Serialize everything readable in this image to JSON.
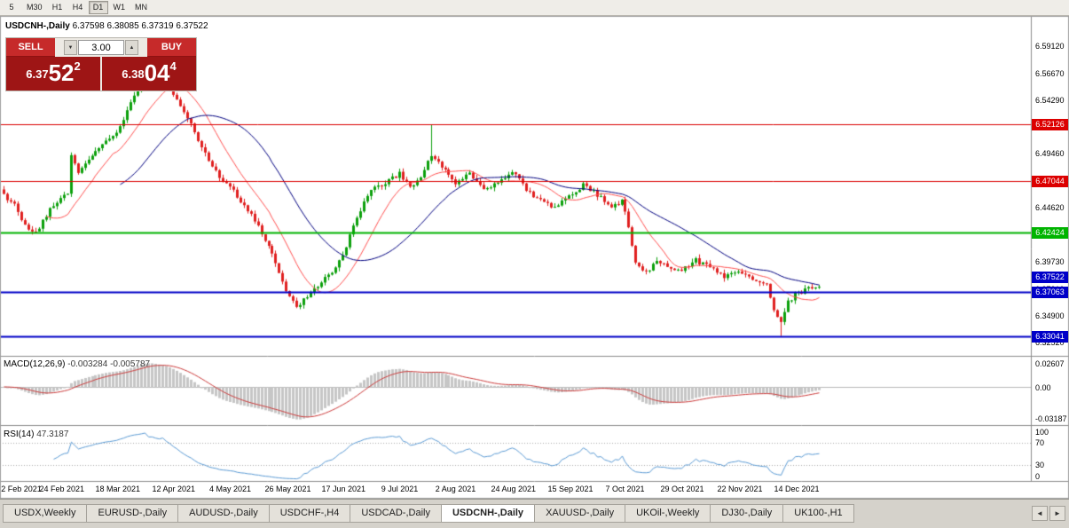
{
  "toolbar": {
    "timeframes": [
      {
        "label": "5",
        "active": false
      },
      {
        "label": "M30",
        "active": false
      },
      {
        "label": "H1",
        "active": false
      },
      {
        "label": "H4",
        "active": false
      },
      {
        "label": "D1",
        "active": true
      },
      {
        "label": "W1",
        "active": false
      },
      {
        "label": "MN",
        "active": false
      }
    ]
  },
  "icons": {
    "spin_down": "▼",
    "spin_up": "▲",
    "tab_scroll_left": "◄",
    "tab_scroll_right": "►"
  },
  "chart": {
    "title": "USDCNH-,Daily",
    "ohlc": "6.37598 6.38085 6.37319 6.37522",
    "trade_panel": {
      "sell_label": "SELL",
      "buy_label": "BUY",
      "volume": "3.00",
      "button_color": "#C62A2A",
      "price_bg": "#9E1515",
      "bid": {
        "head": "6.37",
        "big": "52",
        "sup": "2"
      },
      "ask": {
        "head": "6.38",
        "big": "04",
        "sup": "4"
      }
    }
  },
  "macd": {
    "label": "MACD(12,26,9)",
    "values": "-0.003284 -0.005787"
  },
  "rsi": {
    "label": "RSI(14)",
    "value": "47.3187"
  },
  "tabs": [
    {
      "label": "USDX,Weekly",
      "active": false
    },
    {
      "label": "EURUSD-,Daily",
      "active": false
    },
    {
      "label": "AUDUSD-,Daily",
      "active": false
    },
    {
      "label": "USDCHF-,H4",
      "active": false
    },
    {
      "label": "USDCAD-,Daily",
      "active": false
    },
    {
      "label": "USDCNH-,Daily",
      "active": true
    },
    {
      "label": "XAUUSD-,Daily",
      "active": false
    },
    {
      "label": "UKOil-,Weekly",
      "active": false
    },
    {
      "label": "DJ30-,Daily",
      "active": false
    },
    {
      "label": "UK100-,H1",
      "active": false
    }
  ],
  "chart_data": {
    "type": "candlestick",
    "symbol": "USDCNH",
    "period": "Daily",
    "ohlc_display": {
      "open": "6.37598",
      "high": "6.38085",
      "low": "6.37319",
      "close": "6.37522"
    },
    "candle_count": 232,
    "candle_spacing": 3.98,
    "price_top": 6.6184,
    "price_bottom": 6.3132,
    "seed": 20211214,
    "noise": 0.004,
    "wick": 0.0035,
    "last_close": 6.37522,
    "up_color": "#0CA00C",
    "down_color": "#E02020",
    "ma_fast": {
      "period": 13,
      "color": "#FF5050"
    },
    "ma_slow": {
      "period": 34,
      "color": "#000080"
    },
    "anchors": [
      [
        0,
        6.458
      ],
      [
        3,
        6.448
      ],
      [
        6,
        6.43
      ],
      [
        9,
        6.424
      ],
      [
        12,
        6.44
      ],
      [
        15,
        6.452
      ],
      [
        18,
        6.458
      ],
      [
        19,
        6.495
      ],
      [
        21,
        6.478
      ],
      [
        24,
        6.49
      ],
      [
        28,
        6.502
      ],
      [
        32,
        6.512
      ],
      [
        36,
        6.54
      ],
      [
        40,
        6.564
      ],
      [
        43,
        6.556
      ],
      [
        45,
        6.561
      ],
      [
        48,
        6.548
      ],
      [
        52,
        6.528
      ],
      [
        56,
        6.5
      ],
      [
        60,
        6.478
      ],
      [
        64,
        6.465
      ],
      [
        68,
        6.448
      ],
      [
        72,
        6.43
      ],
      [
        76,
        6.405
      ],
      [
        80,
        6.372
      ],
      [
        83,
        6.358
      ],
      [
        86,
        6.366
      ],
      [
        90,
        6.38
      ],
      [
        94,
        6.392
      ],
      [
        96,
        6.404
      ],
      [
        100,
        6.438
      ],
      [
        104,
        6.462
      ],
      [
        108,
        6.468
      ],
      [
        112,
        6.477
      ],
      [
        115,
        6.465
      ],
      [
        118,
        6.472
      ],
      [
        121,
        6.494
      ],
      [
        124,
        6.483
      ],
      [
        128,
        6.466
      ],
      [
        132,
        6.477
      ],
      [
        136,
        6.462
      ],
      [
        140,
        6.47
      ],
      [
        144,
        6.479
      ],
      [
        148,
        6.463
      ],
      [
        152,
        6.452
      ],
      [
        156,
        6.446
      ],
      [
        160,
        6.456
      ],
      [
        164,
        6.467
      ],
      [
        168,
        6.458
      ],
      [
        172,
        6.448
      ],
      [
        175,
        6.452
      ],
      [
        177,
        6.43
      ],
      [
        179,
        6.398
      ],
      [
        182,
        6.388
      ],
      [
        185,
        6.398
      ],
      [
        188,
        6.393
      ],
      [
        192,
        6.391
      ],
      [
        196,
        6.399
      ],
      [
        200,
        6.392
      ],
      [
        204,
        6.384
      ],
      [
        208,
        6.389
      ],
      [
        212,
        6.382
      ],
      [
        216,
        6.376
      ],
      [
        218,
        6.356
      ],
      [
        220,
        6.343
      ],
      [
        222,
        6.361
      ],
      [
        224,
        6.368
      ],
      [
        228,
        6.373
      ],
      [
        231,
        6.37522
      ]
    ],
    "forced_highs": [
      [
        42,
        6.5745
      ],
      [
        121,
        6.521
      ]
    ],
    "forced_lows": [
      [
        83,
        6.356
      ],
      [
        220,
        6.331
      ]
    ],
    "hlines": [
      {
        "label": "6.52126",
        "value": 6.52126,
        "color": "#DC0000",
        "width": 1
      },
      {
        "label": "6.47044",
        "value": 6.47044,
        "color": "#DC0000",
        "width": 1
      },
      {
        "label": "6.42424",
        "value": 6.42424,
        "color": "#00B400",
        "width": 2
      },
      {
        "label": "6.37063",
        "value": 6.37063,
        "color": "#0000C8",
        "width": 2
      },
      {
        "label": "6.33041",
        "value": 6.33041,
        "color": "#0000C8",
        "width": 2
      }
    ],
    "current_price": {
      "label": "6.37522",
      "value": 6.37522,
      "color": "#0000C8"
    },
    "axis_ticks": [
      "6.59120",
      "6.56670",
      "6.54290",
      "6.51870",
      "6.49460",
      "6.47040",
      "6.44620",
      "6.42200",
      "6.39730",
      "6.37310",
      "6.34900",
      "6.32520"
    ],
    "dates": [
      "2 Feb 2021",
      "24 Feb 2021",
      "18 Mar 2021",
      "12 Apr 2021",
      "4 May 2021",
      "26 May 2021",
      "17 Jun 2021",
      "9 Jul 2021",
      "2 Aug 2021",
      "24 Aug 2021",
      "15 Sep 2021",
      "7 Oct 2021",
      "29 Oct 2021",
      "22 Nov 2021",
      "14 Dec 2021"
    ],
    "date_tick_interval": 16,
    "macd": {
      "fast": 12,
      "slow": 26,
      "signal": 9,
      "main_value": -0.003284,
      "signal_value": -0.005787,
      "histogram_color": "#C6C6C6",
      "signal_color": "#CC3A3A",
      "axis_labels": [
        "0.02607",
        "0.00",
        "-0.03187"
      ]
    },
    "rsi": {
      "period": 14,
      "last_value": 47.3187,
      "color": "#5B9BD5",
      "levels": [
        70,
        30
      ],
      "axis_labels": [
        "100",
        "70",
        "30",
        "0"
      ]
    }
  }
}
